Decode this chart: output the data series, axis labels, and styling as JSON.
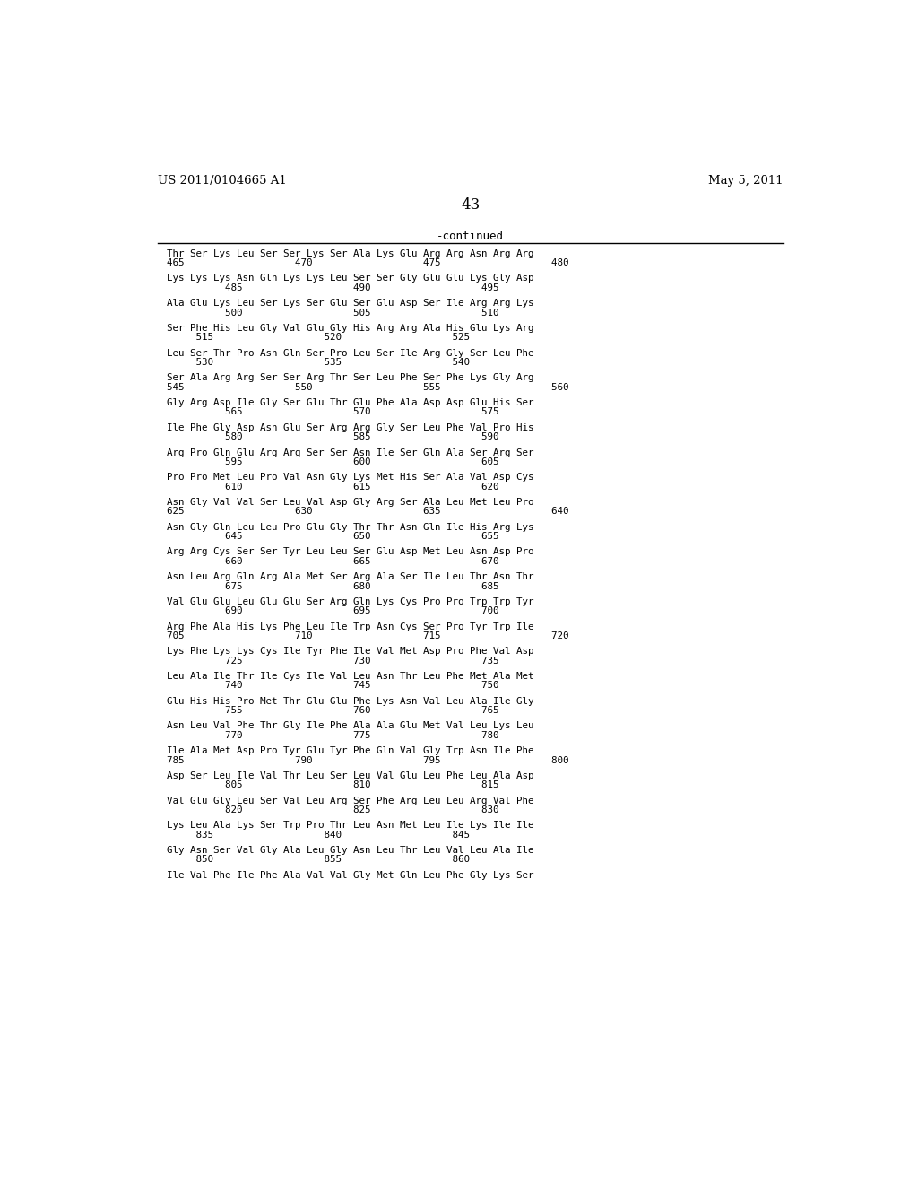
{
  "header_left": "US 2011/0104665 A1",
  "header_right": "May 5, 2011",
  "page_number": "43",
  "continued_label": "-continued",
  "background_color": "#ffffff",
  "text_color": "#000000",
  "sequence_blocks": [
    {
      "seq": "Thr Ser Lys Leu Ser Ser Lys Ser Ala Lys Glu Arg Arg Asn Arg Arg",
      "num": "465                   470                   475                   480"
    },
    {
      "seq": "Lys Lys Lys Asn Gln Lys Lys Leu Ser Ser Gly Glu Glu Lys Gly Asp",
      "num": "          485                   490                   495"
    },
    {
      "seq": "Ala Glu Lys Leu Ser Lys Ser Glu Ser Glu Asp Ser Ile Arg Arg Lys",
      "num": "          500                   505                   510"
    },
    {
      "seq": "Ser Phe His Leu Gly Val Glu Gly His Arg Arg Ala His Glu Lys Arg",
      "num": "     515                   520                   525"
    },
    {
      "seq": "Leu Ser Thr Pro Asn Gln Ser Pro Leu Ser Ile Arg Gly Ser Leu Phe",
      "num": "     530                   535                   540"
    },
    {
      "seq": "Ser Ala Arg Arg Ser Ser Arg Thr Ser Leu Phe Ser Phe Lys Gly Arg",
      "num": "545                   550                   555                   560"
    },
    {
      "seq": "Gly Arg Asp Ile Gly Ser Glu Thr Glu Phe Ala Asp Asp Glu His Ser",
      "num": "          565                   570                   575"
    },
    {
      "seq": "Ile Phe Gly Asp Asn Glu Ser Arg Arg Gly Ser Leu Phe Val Pro His",
      "num": "          580                   585                   590"
    },
    {
      "seq": "Arg Pro Gln Glu Arg Arg Ser Ser Asn Ile Ser Gln Ala Ser Arg Ser",
      "num": "          595                   600                   605"
    },
    {
      "seq": "Pro Pro Met Leu Pro Val Asn Gly Lys Met His Ser Ala Val Asp Cys",
      "num": "          610                   615                   620"
    },
    {
      "seq": "Asn Gly Val Val Ser Leu Val Asp Gly Arg Ser Ala Leu Met Leu Pro",
      "num": "625                   630                   635                   640"
    },
    {
      "seq": "Asn Gly Gln Leu Leu Pro Glu Gly Thr Thr Asn Gln Ile His Arg Lys",
      "num": "          645                   650                   655"
    },
    {
      "seq": "Arg Arg Cys Ser Ser Tyr Leu Leu Ser Glu Asp Met Leu Asn Asp Pro",
      "num": "          660                   665                   670"
    },
    {
      "seq": "Asn Leu Arg Gln Arg Ala Met Ser Arg Ala Ser Ile Leu Thr Asn Thr",
      "num": "          675                   680                   685"
    },
    {
      "seq": "Val Glu Glu Leu Glu Glu Ser Arg Gln Lys Cys Pro Pro Trp Trp Tyr",
      "num": "          690                   695                   700"
    },
    {
      "seq": "Arg Phe Ala His Lys Phe Leu Ile Trp Asn Cys Ser Pro Tyr Trp Ile",
      "num": "705                   710                   715                   720"
    },
    {
      "seq": "Lys Phe Lys Lys Cys Ile Tyr Phe Ile Val Met Asp Pro Phe Val Asp",
      "num": "          725                   730                   735"
    },
    {
      "seq": "Leu Ala Ile Thr Ile Cys Ile Val Leu Asn Thr Leu Phe Met Ala Met",
      "num": "          740                   745                   750"
    },
    {
      "seq": "Glu His His Pro Met Thr Glu Glu Phe Lys Asn Val Leu Ala Ile Gly",
      "num": "          755                   760                   765"
    },
    {
      "seq": "Asn Leu Val Phe Thr Gly Ile Phe Ala Ala Glu Met Val Leu Lys Leu",
      "num": "          770                   775                   780"
    },
    {
      "seq": "Ile Ala Met Asp Pro Tyr Glu Tyr Phe Gln Val Gly Trp Asn Ile Phe",
      "num": "785                   790                   795                   800"
    },
    {
      "seq": "Asp Ser Leu Ile Val Thr Leu Ser Leu Val Glu Leu Phe Leu Ala Asp",
      "num": "          805                   810                   815"
    },
    {
      "seq": "Val Glu Gly Leu Ser Val Leu Arg Ser Phe Arg Leu Leu Arg Val Phe",
      "num": "          820                   825                   830"
    },
    {
      "seq": "Lys Leu Ala Lys Ser Trp Pro Thr Leu Asn Met Leu Ile Lys Ile Ile",
      "num": "     835                   840                   845"
    },
    {
      "seq": "Gly Asn Ser Val Gly Ala Leu Gly Asn Leu Thr Leu Val Leu Ala Ile",
      "num": "     850                   855                   860"
    },
    {
      "seq": "Ile Val Phe Ile Phe Ala Val Val Gly Met Gln Leu Phe Gly Lys Ser",
      "num": ""
    }
  ]
}
